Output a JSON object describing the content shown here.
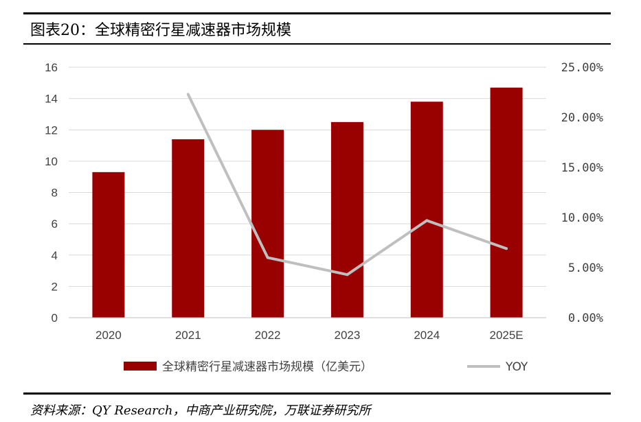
{
  "header": {
    "title": "图表20：全球精密行星减速器市场规模"
  },
  "footer": {
    "source": "资料来源：QY Research，中商产业研究院，万联证券研究所"
  },
  "colors": {
    "bar": "#990000",
    "line": "#BFBFBF",
    "grid": "#D9D9D9",
    "axis": "#BFBFBF"
  },
  "chart_data": {
    "type": "bar",
    "categories": [
      "2020",
      "2021",
      "2022",
      "2023",
      "2024",
      "2025E"
    ],
    "series": [
      {
        "name": "全球精密行星减速器市场规模（亿美元）",
        "type": "bar",
        "axis": "left",
        "values": [
          9.3,
          11.4,
          12.0,
          12.5,
          13.8,
          14.7
        ]
      },
      {
        "name": "YOY",
        "type": "line",
        "axis": "right",
        "values": [
          null,
          22.3,
          6.0,
          4.3,
          9.7,
          6.9
        ]
      }
    ],
    "ylim": [
      0,
      16
    ],
    "yticks": [
      "0",
      "2",
      "4",
      "6",
      "8",
      "10",
      "12",
      "14",
      "16"
    ],
    "y2lim": [
      0,
      25
    ],
    "y2ticks": [
      "0.00%",
      "5.00%",
      "10.00%",
      "15.00%",
      "20.00%",
      "25.00%"
    ],
    "grid": true,
    "legend": "bottom"
  }
}
